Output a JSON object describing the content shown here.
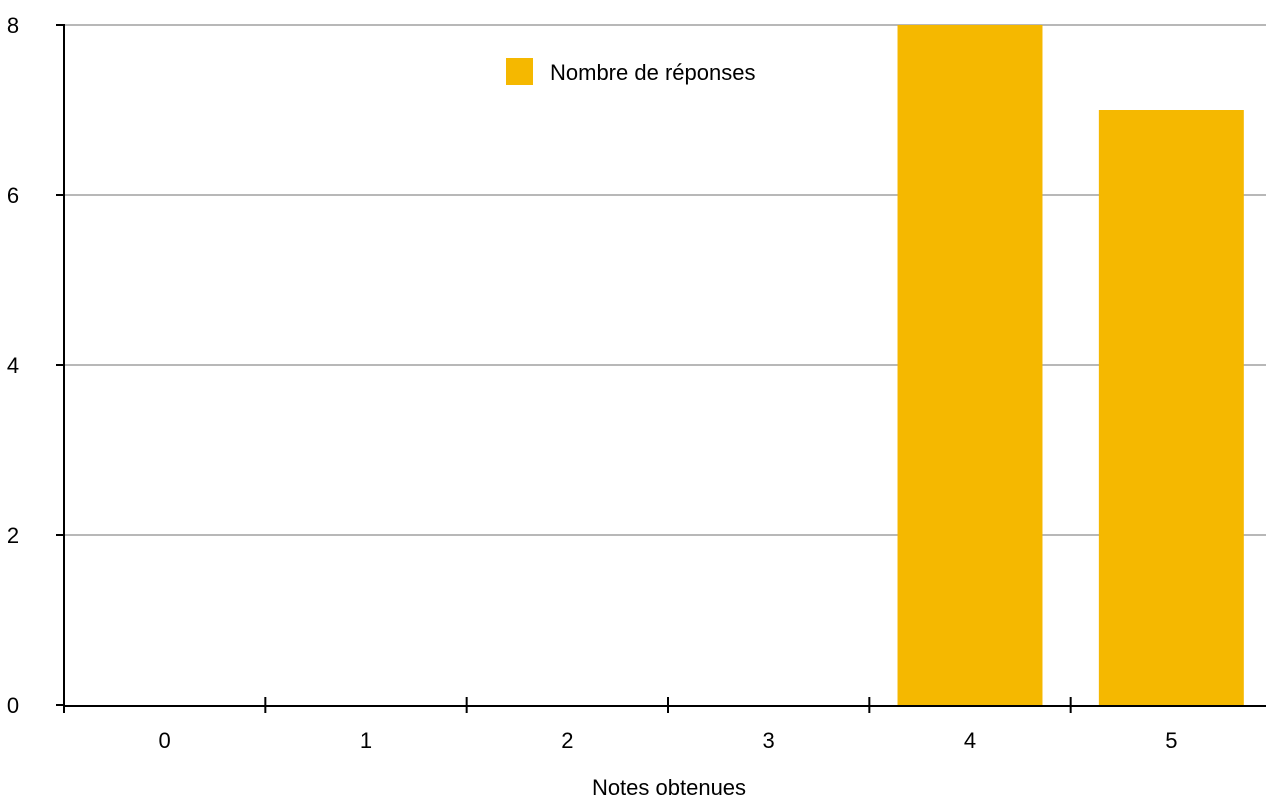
{
  "chart_data": {
    "type": "bar",
    "title": "",
    "xlabel": "Notes obtenues",
    "ylabel": "",
    "categories": [
      "0",
      "1",
      "2",
      "3",
      "4",
      "5"
    ],
    "series": [
      {
        "name": "Nombre de réponses",
        "values": [
          0,
          0,
          0,
          0,
          8,
          7
        ],
        "color": "#F5B800"
      }
    ],
    "ylim": [
      0,
      8
    ],
    "yticks": [
      "0",
      "2",
      "4",
      "6",
      "8"
    ],
    "grid": true,
    "legend_position": "top-center"
  }
}
